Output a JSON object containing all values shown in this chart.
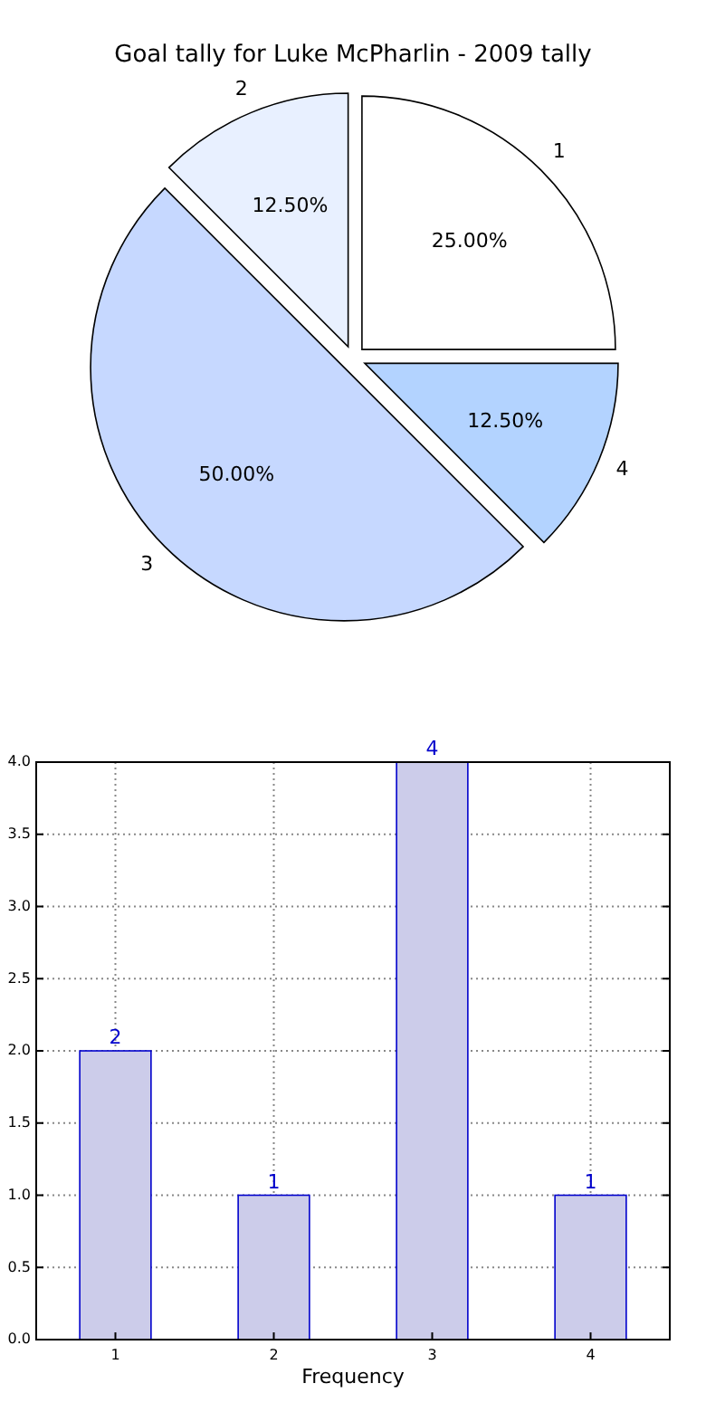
{
  "chart_data": [
    {
      "type": "pie",
      "title": "Goal tally for Luke McPharlin - 2009 tally",
      "categories": [
        "1",
        "2",
        "3",
        "4"
      ],
      "values": [
        25,
        12.5,
        50,
        12.5
      ],
      "colors": [
        "#ffffff",
        "#e8f0ff",
        "#c6d8ff",
        "#b3d3ff"
      ],
      "value_labels": [
        "25.00%",
        "12.50%",
        "50.00%",
        "12.50%"
      ]
    },
    {
      "type": "bar",
      "categories": [
        "1",
        "2",
        "3",
        "4"
      ],
      "values": [
        2,
        1,
        4,
        1
      ],
      "color": "#ccccea",
      "xlabel": "Frequency",
      "ylim": [
        0,
        4
      ],
      "yticks": [
        {
          "value": 0,
          "label": "0.0"
        },
        {
          "value": 0.5,
          "label": "0.5"
        },
        {
          "value": 1,
          "label": "1.0"
        },
        {
          "value": 1.5,
          "label": "1.5"
        },
        {
          "value": 2,
          "label": "2.0"
        },
        {
          "value": 2.5,
          "label": "2.5"
        },
        {
          "value": 3,
          "label": "3.0"
        },
        {
          "value": 3.5,
          "label": "3.5"
        },
        {
          "value": 4,
          "label": "4.0"
        }
      ],
      "grid": true,
      "data_labels": true
    }
  ]
}
